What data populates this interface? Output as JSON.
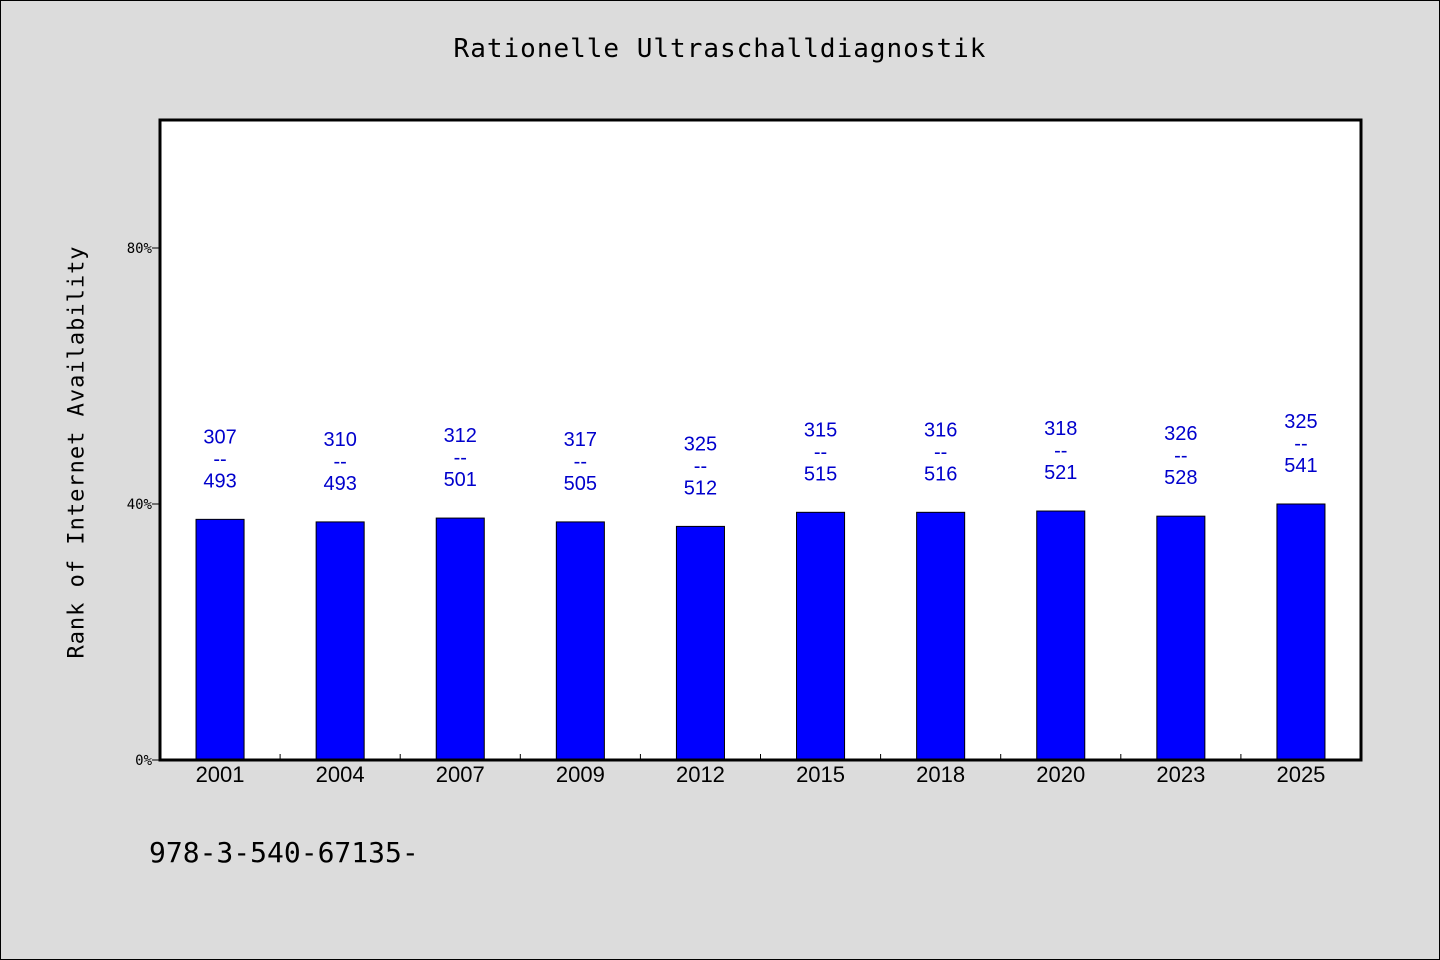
{
  "chart_data": {
    "type": "bar",
    "title": "Rationelle Ultraschalldiagnostik",
    "ylabel": "Rank of Internet Availability",
    "xlabel": "",
    "categories": [
      "2001",
      "2004",
      "2007",
      "2009",
      "2012",
      "2015",
      "2018",
      "2020",
      "2023",
      "2025"
    ],
    "values": [
      37.6,
      37.2,
      37.8,
      37.2,
      36.5,
      38.7,
      38.7,
      38.9,
      38.1,
      40.0
    ],
    "data_labels": [
      [
        "307",
        "--",
        "493"
      ],
      [
        "310",
        "--",
        "493"
      ],
      [
        "312",
        "--",
        "501"
      ],
      [
        "317",
        "--",
        "505"
      ],
      [
        "325",
        "--",
        "512"
      ],
      [
        "315",
        "--",
        "515"
      ],
      [
        "316",
        "--",
        "516"
      ],
      [
        "318",
        "--",
        "521"
      ],
      [
        "326",
        "--",
        "528"
      ],
      [
        "325",
        "--",
        "541"
      ]
    ],
    "yticks": [
      0,
      40,
      80
    ],
    "ytick_labels": [
      "0%",
      "40%",
      "80%"
    ],
    "ylim": [
      0,
      100
    ],
    "grid": false,
    "bar_color": "#0000ff",
    "label_color": "#0000cc"
  },
  "footer": {
    "code": "978-3-540-67135-"
  }
}
